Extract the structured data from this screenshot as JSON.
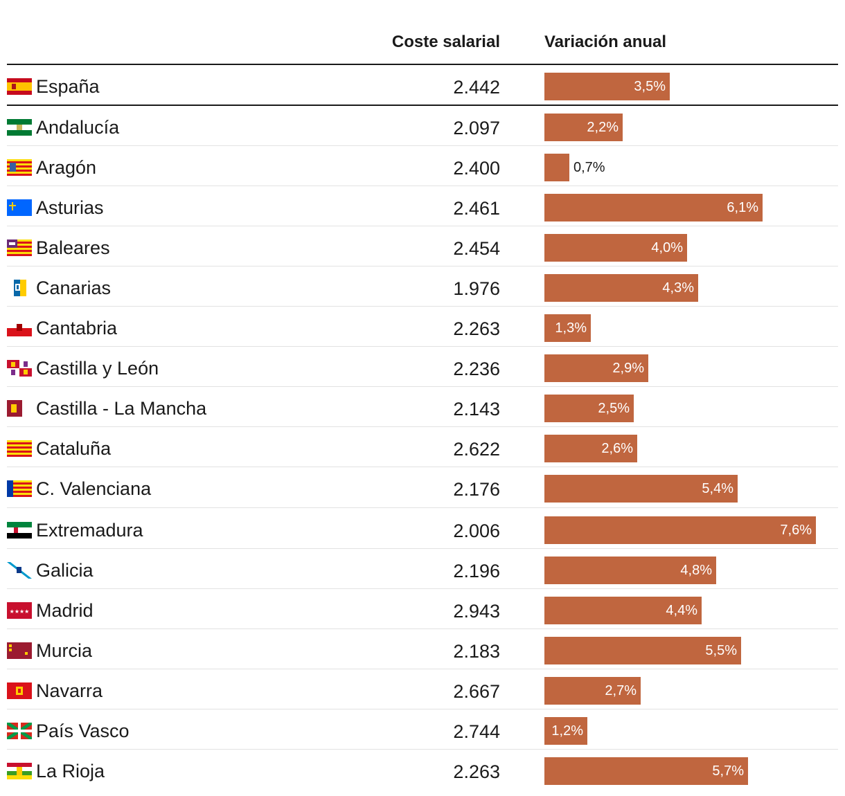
{
  "header": {
    "cost_label": "Coste salarial",
    "variation_label": "Variación anual"
  },
  "colors": {
    "bar": "#c0663f",
    "text": "#1a1a1a",
    "divider": "#e2e2e2"
  },
  "chart_data": {
    "type": "bar",
    "title": "",
    "xlabel": "Variación anual",
    "ylabel": "",
    "xlim": [
      0,
      7.6
    ],
    "columns": [
      "Coste salarial",
      "Variación anual"
    ],
    "rows": [
      {
        "region": "España",
        "cost": "2.442",
        "value": 3.5,
        "label": "3,5%",
        "flag": "spain-flag-icon"
      },
      {
        "region": "Andalucía",
        "cost": "2.097",
        "value": 2.2,
        "label": "2,2%",
        "flag": "andalucia-flag-icon"
      },
      {
        "region": "Aragón",
        "cost": "2.400",
        "value": 0.7,
        "label": "0,7%",
        "flag": "aragon-flag-icon"
      },
      {
        "region": "Asturias",
        "cost": "2.461",
        "value": 6.1,
        "label": "6,1%",
        "flag": "asturias-flag-icon"
      },
      {
        "region": "Baleares",
        "cost": "2.454",
        "value": 4.0,
        "label": "4,0%",
        "flag": "baleares-flag-icon"
      },
      {
        "region": "Canarias",
        "cost": "1.976",
        "value": 4.3,
        "label": "4,3%",
        "flag": "canarias-flag-icon"
      },
      {
        "region": "Cantabria",
        "cost": "2.263",
        "value": 1.3,
        "label": "1,3%",
        "flag": "cantabria-flag-icon"
      },
      {
        "region": "Castilla y León",
        "cost": "2.236",
        "value": 2.9,
        "label": "2,9%",
        "flag": "castilla-leon-flag-icon"
      },
      {
        "region": "Castilla - La Mancha",
        "cost": "2.143",
        "value": 2.5,
        "label": "2,5%",
        "flag": "castilla-la-mancha-flag-icon"
      },
      {
        "region": "Cataluña",
        "cost": "2.622",
        "value": 2.6,
        "label": "2,6%",
        "flag": "cataluna-flag-icon"
      },
      {
        "region": "C. Valenciana",
        "cost": "2.176",
        "value": 5.4,
        "label": "5,4%",
        "flag": "valenciana-flag-icon"
      },
      {
        "region": "Extremadura",
        "cost": "2.006",
        "value": 7.6,
        "label": "7,6%",
        "flag": "extremadura-flag-icon"
      },
      {
        "region": "Galicia",
        "cost": "2.196",
        "value": 4.8,
        "label": "4,8%",
        "flag": "galicia-flag-icon"
      },
      {
        "region": "Madrid",
        "cost": "2.943",
        "value": 4.4,
        "label": "4,4%",
        "flag": "madrid-flag-icon"
      },
      {
        "region": "Murcia",
        "cost": "2.183",
        "value": 5.5,
        "label": "5,5%",
        "flag": "murcia-flag-icon"
      },
      {
        "region": "Navarra",
        "cost": "2.667",
        "value": 2.7,
        "label": "2,7%",
        "flag": "navarra-flag-icon"
      },
      {
        "region": "País Vasco",
        "cost": "2.744",
        "value": 1.2,
        "label": "1,2%",
        "flag": "pais-vasco-flag-icon"
      },
      {
        "region": "La Rioja",
        "cost": "2.263",
        "value": 5.7,
        "label": "5,7%",
        "flag": "la-rioja-flag-icon"
      }
    ]
  }
}
